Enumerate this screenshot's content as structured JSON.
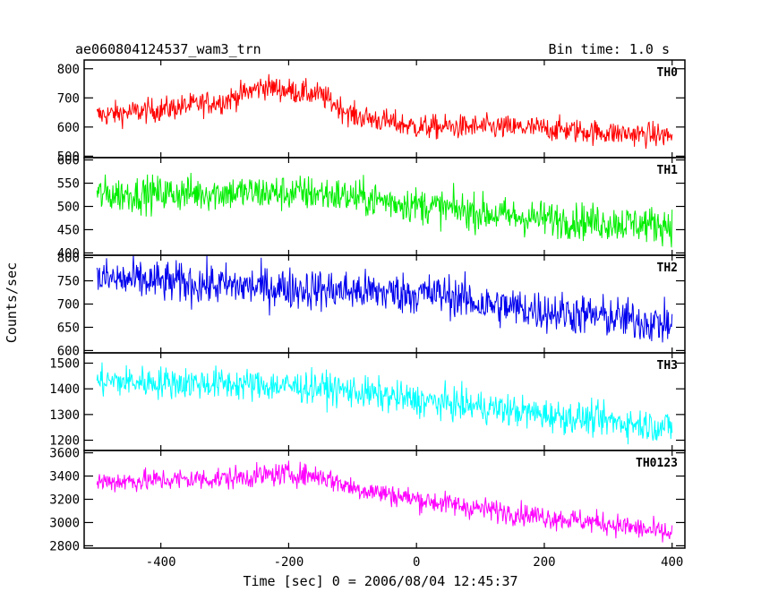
{
  "chart_data": {
    "type": "line",
    "title": "ae060804124537_wam3_trn",
    "subtitle": "Bin time: 1.0 s",
    "xlabel": "Time [sec] 0 = 2006/08/04 12:45:37",
    "ylabel": "Counts/sec",
    "xlim": [
      -520,
      420
    ],
    "x_ticks": [
      -400,
      -200,
      0,
      200,
      400
    ],
    "x_range": [
      -500,
      400
    ],
    "bin_time_s": 1.0,
    "grid": false,
    "panels": [
      {
        "name": "TH0",
        "color": "#ff0000",
        "ylim": [
          495,
          830
        ],
        "y_ticks": [
          500,
          600,
          700,
          800
        ],
        "trend": [
          [
            -500,
            640
          ],
          [
            -400,
            660
          ],
          [
            -300,
            690
          ],
          [
            -240,
            740
          ],
          [
            -200,
            725
          ],
          [
            -150,
            710
          ],
          [
            -100,
            640
          ],
          [
            -50,
            620
          ],
          [
            0,
            600
          ],
          [
            100,
            600
          ],
          [
            200,
            595
          ],
          [
            300,
            580
          ],
          [
            400,
            570
          ]
        ],
        "noise": 30
      },
      {
        "name": "TH1",
        "color": "#00ee00",
        "ylim": [
          395,
          605
        ],
        "y_ticks": [
          400,
          450,
          500,
          550,
          600
        ],
        "trend": [
          [
            -500,
            525
          ],
          [
            -300,
            530
          ],
          [
            -150,
            528
          ],
          [
            -50,
            512
          ],
          [
            50,
            495
          ],
          [
            150,
            478
          ],
          [
            300,
            465
          ],
          [
            400,
            460
          ]
        ],
        "noise": 28
      },
      {
        "name": "TH2",
        "color": "#0000ee",
        "ylim": [
          595,
          805
        ],
        "y_ticks": [
          600,
          650,
          700,
          750,
          800
        ],
        "trend": [
          [
            -500,
            755
          ],
          [
            -300,
            740
          ],
          [
            -100,
            728
          ],
          [
            50,
            720
          ],
          [
            100,
            700
          ],
          [
            200,
            685
          ],
          [
            300,
            672
          ],
          [
            400,
            655
          ]
        ],
        "noise": 32
      },
      {
        "name": "TH3",
        "color": "#00ffff",
        "ylim": [
          1160,
          1540
        ],
        "y_ticks": [
          1200,
          1300,
          1400,
          1500
        ],
        "trend": [
          [
            -500,
            1430
          ],
          [
            -300,
            1420
          ],
          [
            -150,
            1405
          ],
          [
            -100,
            1390
          ],
          [
            0,
            1355
          ],
          [
            100,
            1330
          ],
          [
            200,
            1300
          ],
          [
            300,
            1275
          ],
          [
            400,
            1250
          ]
        ],
        "noise": 45
      },
      {
        "name": "TH0123",
        "color": "#ff00ff",
        "ylim": [
          2780,
          3620
        ],
        "y_ticks": [
          2800,
          3000,
          3200,
          3400,
          3600
        ],
        "trend": [
          [
            -500,
            3350
          ],
          [
            -300,
            3380
          ],
          [
            -200,
            3420
          ],
          [
            -150,
            3400
          ],
          [
            -100,
            3300
          ],
          [
            0,
            3200
          ],
          [
            100,
            3120
          ],
          [
            200,
            3050
          ],
          [
            300,
            2990
          ],
          [
            400,
            2900
          ]
        ],
        "noise": 70
      }
    ]
  }
}
